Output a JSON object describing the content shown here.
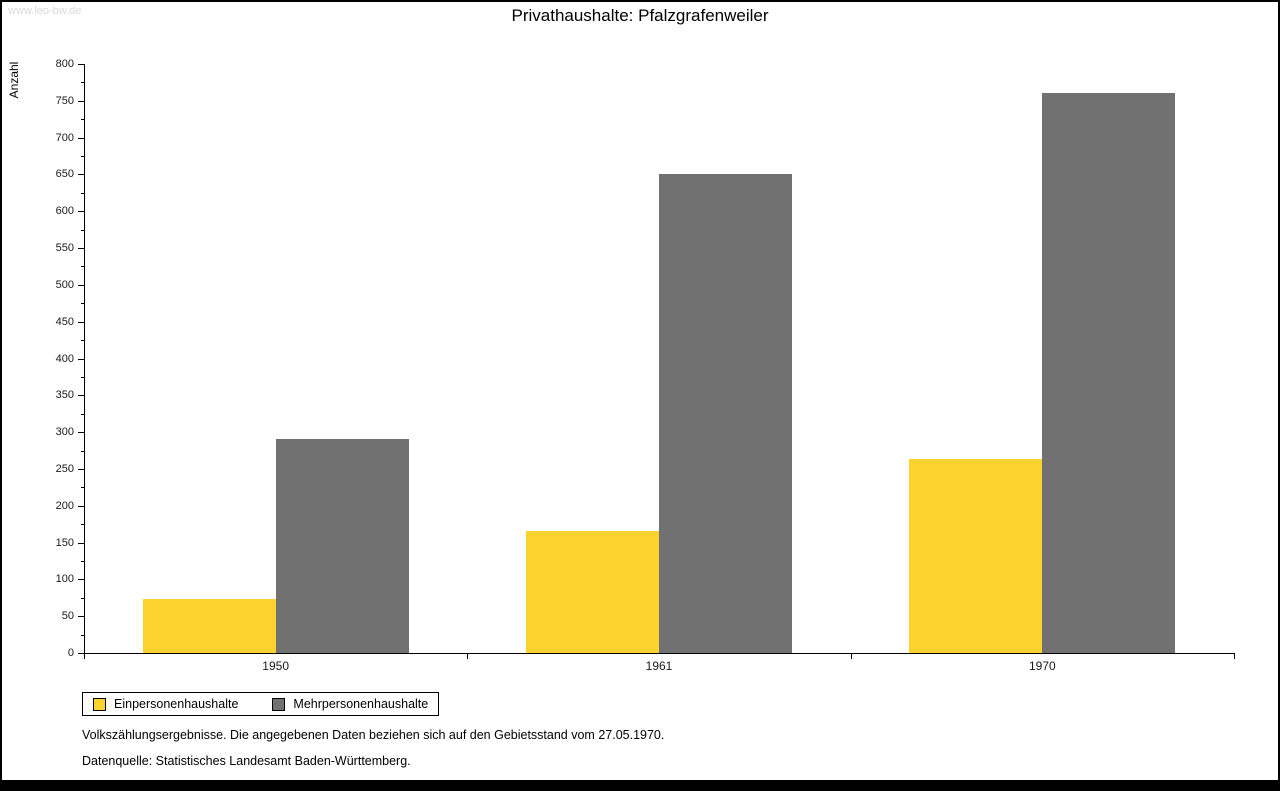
{
  "watermark": "www.leo-bw.de",
  "chart_data": {
    "type": "bar",
    "title": "Privathaushalte: Pfalzgrafenweiler",
    "ylabel": "Anzahl",
    "xlabel": "",
    "categories": [
      "1950",
      "1961",
      "1970"
    ],
    "series": [
      {
        "name": "Einpersonenhaushalte",
        "color": "#fcd22e",
        "values": [
          73,
          166,
          263
        ]
      },
      {
        "name": "Mehrpersonenhaushalte",
        "color": "#717171",
        "values": [
          291,
          650,
          760
        ]
      }
    ],
    "ylim": [
      0,
      800
    ],
    "ytick_step": 50,
    "ytick_minor_step": 25,
    "grid": false,
    "legend_position": "bottom-left"
  },
  "footnotes": [
    "Volkszählungsergebnisse. Die angegebenen Daten beziehen sich auf den Gebietsstand vom 27.05.1970.",
    "Datenquelle: Statistisches Landesamt Baden-Württemberg."
  ]
}
